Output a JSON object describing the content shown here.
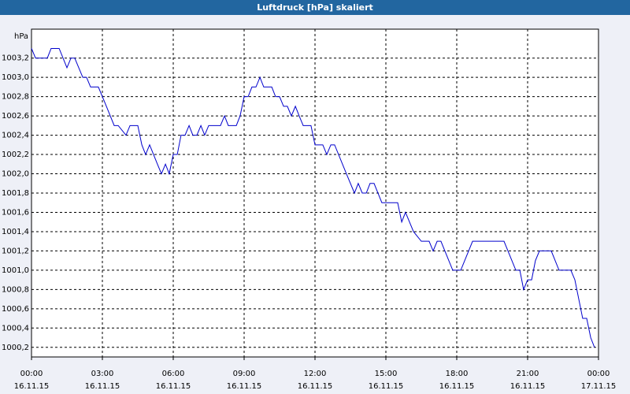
{
  "chart_data": {
    "type": "line",
    "title": "Luftdruck [hPa] skaliert",
    "ylabel": "hPa",
    "xlim": [
      0,
      24
    ],
    "ylim": [
      1000.1,
      1003.5
    ],
    "xticks": [
      {
        "value": 0,
        "label": [
          "00:00",
          "16.11.15"
        ]
      },
      {
        "value": 3,
        "label": [
          "03:00",
          "16.11.15"
        ]
      },
      {
        "value": 6,
        "label": [
          "06:00",
          "16.11.15"
        ]
      },
      {
        "value": 9,
        "label": [
          "09:00",
          "16.11.15"
        ]
      },
      {
        "value": 12,
        "label": [
          "12:00",
          "16.11.15"
        ]
      },
      {
        "value": 15,
        "label": [
          "15:00",
          "16.11.15"
        ]
      },
      {
        "value": 18,
        "label": [
          "18:00",
          "16.11.15"
        ]
      },
      {
        "value": 21,
        "label": [
          "21:00",
          "16.11.15"
        ]
      },
      {
        "value": 24,
        "label": [
          "00:00",
          "17.11.15"
        ]
      }
    ],
    "yticks": [
      {
        "value": 1000.2,
        "label": "1000,2"
      },
      {
        "value": 1000.4,
        "label": "1000,4"
      },
      {
        "value": 1000.6,
        "label": "1000,6"
      },
      {
        "value": 1000.8,
        "label": "1000,8"
      },
      {
        "value": 1001.0,
        "label": "1001,0"
      },
      {
        "value": 1001.2,
        "label": "1001,2"
      },
      {
        "value": 1001.4,
        "label": "1001,4"
      },
      {
        "value": 1001.6,
        "label": "1001,6"
      },
      {
        "value": 1001.8,
        "label": "1001,8"
      },
      {
        "value": 1002.0,
        "label": "1002,0"
      },
      {
        "value": 1002.2,
        "label": "1002,2"
      },
      {
        "value": 1002.4,
        "label": "1002,4"
      },
      {
        "value": 1002.6,
        "label": "1002,6"
      },
      {
        "value": 1002.8,
        "label": "1002,8"
      },
      {
        "value": 1003.0,
        "label": "1003,0"
      },
      {
        "value": 1003.2,
        "label": "1003,2"
      }
    ],
    "grid": true,
    "series": [
      {
        "color": "#0000cc",
        "x": [
          0,
          0.17,
          0.67,
          0.83,
          1.17,
          1.5,
          1.67,
          1.83,
          2,
          2.17,
          2.33,
          2.5,
          2.83,
          3,
          3.17,
          3.5,
          3.67,
          4,
          4.17,
          4.5,
          4.67,
          4.83,
          5,
          5.33,
          5.5,
          5.67,
          5.83,
          6,
          6.17,
          6.33,
          6.5,
          6.67,
          6.83,
          7,
          7.17,
          7.33,
          7.5,
          8,
          8.17,
          8.33,
          8.67,
          8.83,
          9,
          9.17,
          9.33,
          9.5,
          9.67,
          9.83,
          10.17,
          10.33,
          10.5,
          10.67,
          10.83,
          11,
          11.17,
          11.33,
          11.5,
          11.83,
          12,
          12.33,
          12.5,
          12.67,
          12.83,
          13.33,
          13.67,
          13.83,
          14,
          14.17,
          14.33,
          14.5,
          14.83,
          15.33,
          15.5,
          15.67,
          15.83,
          16.17,
          16.5,
          16.83,
          17,
          17.17,
          17.33,
          17.83,
          18.17,
          18.67,
          20,
          20.5,
          20.67,
          20.83,
          21,
          21.17,
          21.33,
          21.5,
          22,
          22.33,
          22.83,
          23,
          23.33,
          23.5,
          23.67,
          23.83
        ],
        "values": [
          1003.3,
          1003.2,
          1003.2,
          1003.3,
          1003.3,
          1003.1,
          1003.2,
          1003.2,
          1003.1,
          1003.0,
          1003.0,
          1002.9,
          1002.9,
          1002.8,
          1002.7,
          1002.5,
          1002.5,
          1002.4,
          1002.5,
          1002.5,
          1002.3,
          1002.2,
          1002.3,
          1002.1,
          1002.0,
          1002.1,
          1002.0,
          1002.2,
          1002.2,
          1002.4,
          1002.4,
          1002.5,
          1002.4,
          1002.4,
          1002.5,
          1002.4,
          1002.5,
          1002.5,
          1002.6,
          1002.5,
          1002.5,
          1002.6,
          1002.8,
          1002.8,
          1002.9,
          1002.9,
          1003.0,
          1002.9,
          1002.9,
          1002.8,
          1002.8,
          1002.7,
          1002.7,
          1002.6,
          1002.7,
          1002.6,
          1002.5,
          1002.5,
          1002.3,
          1002.3,
          1002.2,
          1002.3,
          1002.3,
          1002.0,
          1001.8,
          1001.9,
          1001.8,
          1001.8,
          1001.9,
          1001.9,
          1001.7,
          1001.7,
          1001.7,
          1001.5,
          1001.6,
          1001.4,
          1001.3,
          1001.3,
          1001.2,
          1001.3,
          1001.3,
          1001.0,
          1001.0,
          1001.3,
          1001.3,
          1001.0,
          1001.0,
          1000.8,
          1000.9,
          1000.9,
          1001.1,
          1001.2,
          1001.2,
          1001.0,
          1001.0,
          1000.9,
          1000.5,
          1000.5,
          1000.3,
          1000.2
        ]
      }
    ]
  }
}
